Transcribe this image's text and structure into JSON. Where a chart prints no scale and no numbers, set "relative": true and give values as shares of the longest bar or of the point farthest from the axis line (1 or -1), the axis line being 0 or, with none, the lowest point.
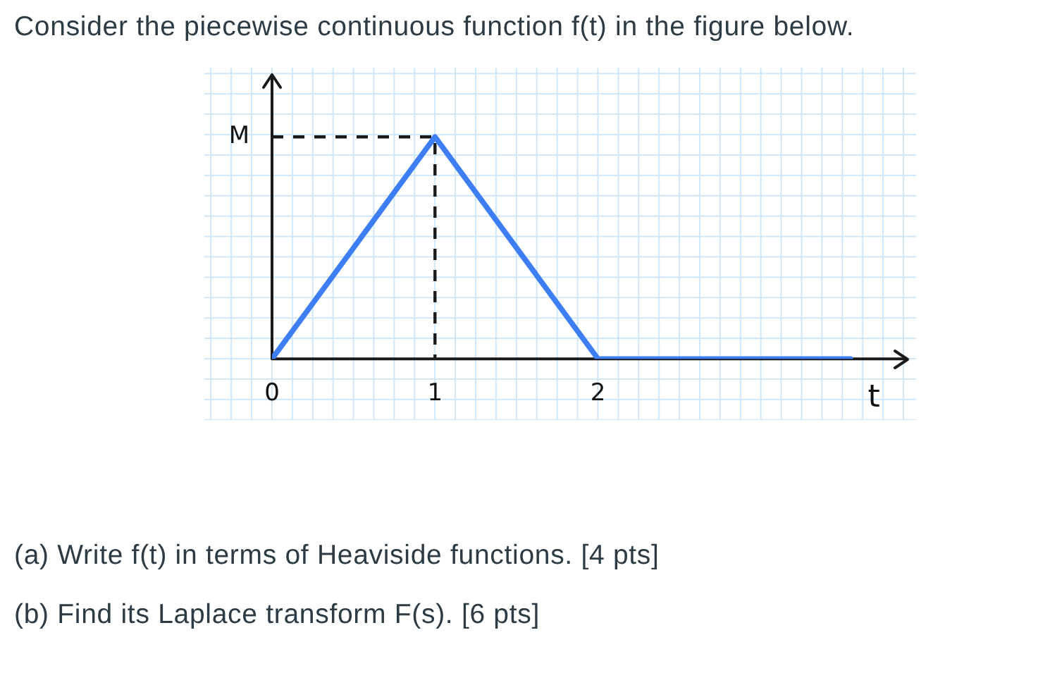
{
  "chart_data": {
    "type": "line",
    "title": "Consider the piecewise continuous function f(t) in the figure below.",
    "xlabel": "t",
    "relative": true,
    "xlim": [
      0,
      3.9
    ],
    "xticks": [
      0,
      1,
      2
    ],
    "series": [
      {
        "color": "#3d7ef4",
        "x": [
          0,
          1,
          2,
          3.55
        ],
        "values": [
          0,
          1,
          0,
          0
        ]
      },
      {
        "color": "#1a1a1a",
        "line_style": "dashed",
        "x": [
          0,
          1,
          1
        ],
        "values": [
          1,
          1,
          0
        ]
      }
    ],
    "annotations": [
      {
        "text": "M",
        "x": 0,
        "y": 1
      },
      "(a) Write f(t) in terms of Heaviside functions. [4 pts]",
      "(b) Find its Laplace transform F(s). [6 pts]"
    ]
  }
}
